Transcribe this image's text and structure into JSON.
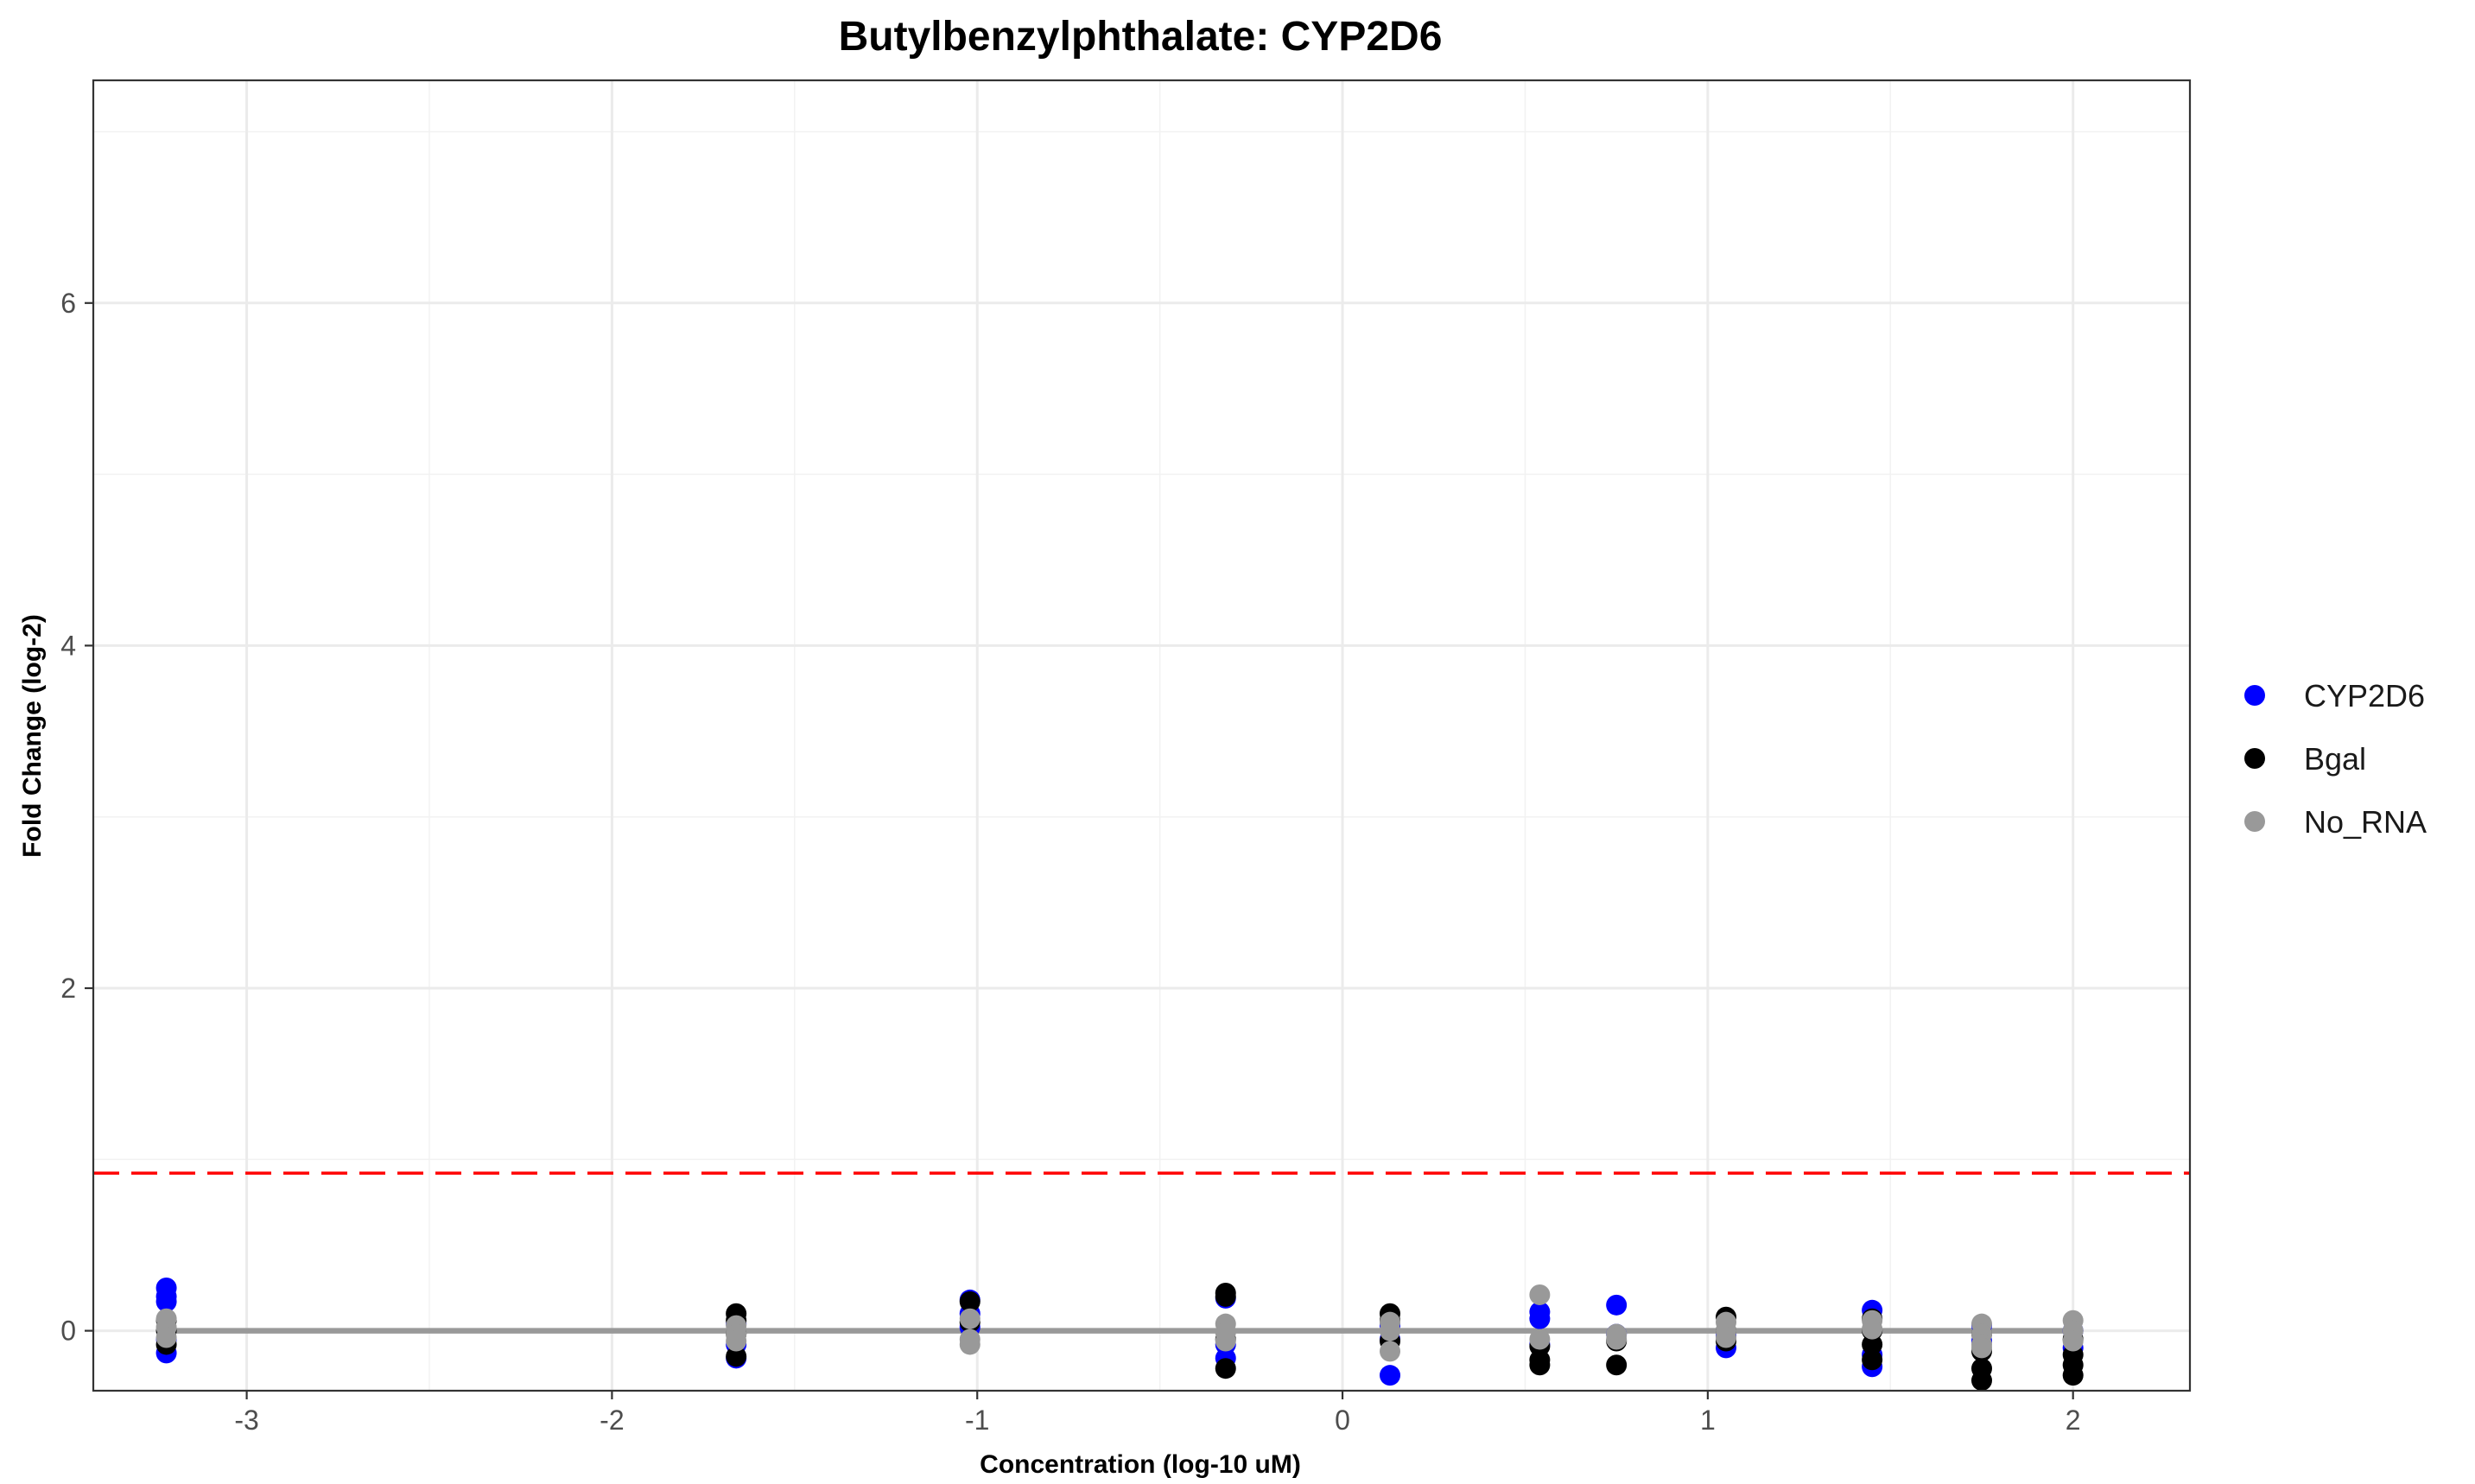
{
  "chart_data": {
    "type": "scatter",
    "title": "Butylbenzylphthalate: CYP2D6",
    "xlabel": "Concentration (log-10 uM)",
    "ylabel": "Fold Change (log-2)",
    "xlim": [
      -3.42,
      2.32
    ],
    "ylim": [
      -0.35,
      7.3
    ],
    "x_ticks": [
      -3,
      -2,
      -1,
      0,
      1,
      2
    ],
    "y_ticks": [
      0,
      2,
      4,
      6
    ],
    "grid": true,
    "legend_position": "right",
    "threshold": {
      "y": 0.92,
      "color": "#ff0000",
      "style": "dashed"
    },
    "fit_line": {
      "y": 0,
      "color": "#999999",
      "x_range": [
        -3.22,
        2.0
      ]
    },
    "series": [
      {
        "name": "CYP2D6",
        "color": "#0000ff",
        "points": [
          [
            -3.22,
            0.25
          ],
          [
            -3.22,
            0.2
          ],
          [
            -3.22,
            0.17
          ],
          [
            -3.22,
            -0.05
          ],
          [
            -3.22,
            -0.13
          ],
          [
            -1.66,
            0.04
          ],
          [
            -1.66,
            -0.08
          ],
          [
            -1.66,
            -0.16
          ],
          [
            -1.02,
            0.18
          ],
          [
            -1.02,
            0.1
          ],
          [
            -1.02,
            0.02
          ],
          [
            -0.32,
            0.19
          ],
          [
            -0.32,
            -0.08
          ],
          [
            -0.32,
            -0.16
          ],
          [
            0.13,
            0.03
          ],
          [
            0.13,
            -0.05
          ],
          [
            0.13,
            -0.26
          ],
          [
            0.54,
            0.11
          ],
          [
            0.54,
            0.07
          ],
          [
            0.54,
            -0.08
          ],
          [
            0.75,
            0.15
          ],
          [
            0.75,
            -0.02
          ],
          [
            1.05,
            -0.03
          ],
          [
            1.05,
            -0.1
          ],
          [
            1.45,
            0.12
          ],
          [
            1.45,
            -0.14
          ],
          [
            1.45,
            -0.21
          ],
          [
            1.75,
            0.03
          ],
          [
            1.75,
            -0.06
          ],
          [
            2.0,
            0.0
          ],
          [
            2.0,
            -0.1
          ]
        ]
      },
      {
        "name": "Bgal",
        "color": "#000000",
        "points": [
          [
            -3.22,
            0.06
          ],
          [
            -3.22,
            0.0
          ],
          [
            -3.22,
            -0.08
          ],
          [
            -1.66,
            0.1
          ],
          [
            -1.66,
            0.06
          ],
          [
            -1.66,
            -0.02
          ],
          [
            -1.66,
            -0.15
          ],
          [
            -1.02,
            0.17
          ],
          [
            -1.02,
            0.05
          ],
          [
            -0.32,
            0.22
          ],
          [
            -0.32,
            0.2
          ],
          [
            -0.32,
            -0.05
          ],
          [
            -0.32,
            -0.22
          ],
          [
            0.13,
            0.1
          ],
          [
            0.13,
            0.06
          ],
          [
            0.13,
            -0.06
          ],
          [
            0.54,
            -0.09
          ],
          [
            0.54,
            -0.17
          ],
          [
            0.54,
            -0.2
          ],
          [
            0.75,
            -0.06
          ],
          [
            0.75,
            -0.2
          ],
          [
            1.05,
            0.08
          ],
          [
            1.05,
            0.0
          ],
          [
            1.05,
            -0.06
          ],
          [
            1.45,
            0.07
          ],
          [
            1.45,
            0.0
          ],
          [
            1.45,
            -0.08
          ],
          [
            1.45,
            -0.17
          ],
          [
            1.75,
            -0.02
          ],
          [
            1.75,
            -0.12
          ],
          [
            1.75,
            -0.22
          ],
          [
            1.75,
            -0.29
          ],
          [
            2.0,
            -0.05
          ],
          [
            2.0,
            -0.14
          ],
          [
            2.0,
            -0.2
          ],
          [
            2.0,
            -0.26
          ]
        ]
      },
      {
        "name": "No_RNA",
        "color": "#999999",
        "points": [
          [
            -3.22,
            0.07
          ],
          [
            -3.22,
            0.02
          ],
          [
            -3.22,
            -0.04
          ],
          [
            -1.66,
            0.03
          ],
          [
            -1.66,
            -0.02
          ],
          [
            -1.66,
            -0.06
          ],
          [
            -1.02,
            0.07
          ],
          [
            -1.02,
            -0.05
          ],
          [
            -1.02,
            -0.08
          ],
          [
            -0.32,
            0.04
          ],
          [
            -0.32,
            -0.01
          ],
          [
            -0.32,
            -0.06
          ],
          [
            0.13,
            0.05
          ],
          [
            0.13,
            0.0
          ],
          [
            0.13,
            -0.12
          ],
          [
            0.54,
            0.21
          ],
          [
            0.54,
            -0.05
          ],
          [
            0.75,
            -0.02
          ],
          [
            0.75,
            -0.05
          ],
          [
            1.05,
            0.05
          ],
          [
            1.05,
            0.0
          ],
          [
            1.05,
            -0.04
          ],
          [
            1.45,
            0.06
          ],
          [
            1.45,
            0.01
          ],
          [
            1.75,
            0.04
          ],
          [
            1.75,
            -0.02
          ],
          [
            1.75,
            -0.08
          ],
          [
            1.75,
            -0.1
          ],
          [
            2.0,
            0.06
          ],
          [
            2.0,
            0.0
          ],
          [
            2.0,
            -0.06
          ]
        ]
      }
    ]
  }
}
